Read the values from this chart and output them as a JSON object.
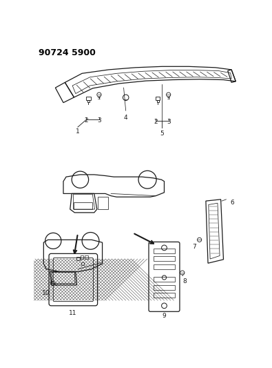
{
  "title": "90724 5900",
  "bg_color": "#ffffff",
  "line_color": "#1a1a1a",
  "fig_width": 3.95,
  "fig_height": 5.33,
  "dpi": 100
}
